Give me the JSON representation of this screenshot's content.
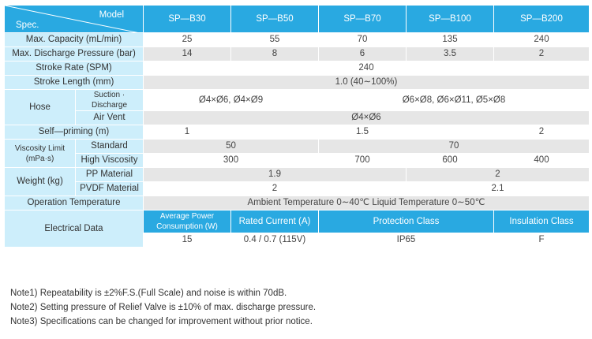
{
  "header": {
    "model_label": "Model",
    "spec_label": "Spec.",
    "models": [
      "SP—B30",
      "SP—B50",
      "SP—B70",
      "SP—B100",
      "SP—B200"
    ]
  },
  "rows": {
    "capacity": {
      "label": "Max. Capacity (mL/min)",
      "values": [
        "25",
        "55",
        "70",
        "135",
        "240"
      ]
    },
    "pressure": {
      "label": "Max. Discharge Pressure (bar)",
      "values": [
        "14",
        "8",
        "6",
        "3.5",
        "2"
      ]
    },
    "stroke_rate": {
      "label": "Stroke Rate (SPM)",
      "value": "240"
    },
    "stroke_length": {
      "label": "Stroke Length (mm)",
      "value": "1.0 (40∼100%)"
    },
    "hose": {
      "label": "Hose",
      "suction_label": "Suction · Discharge",
      "suction_small": "Ø4×Ø6, Ø4×Ø9",
      "suction_large": "Ø6×Ø8, Ø6×Ø11, Ø5×Ø8",
      "vent_label": "Air Vent",
      "vent_value": "Ø4×Ø6"
    },
    "self_priming": {
      "label": "Self—priming (m)",
      "values": [
        "1",
        "1.5",
        "2"
      ]
    },
    "viscosity": {
      "label": "Viscosity Limit (mPa·s)",
      "standard_label": "Standard",
      "standard_values": [
        "50",
        "70"
      ],
      "high_label": "High Viscosity",
      "high_values": [
        "300",
        "700",
        "600",
        "400"
      ]
    },
    "weight": {
      "label": "Weight (kg)",
      "pp_label": "PP Material",
      "pp_values": [
        "1.9",
        "2"
      ],
      "pvdf_label": "PVDF Material",
      "pvdf_values": [
        "2",
        "2.1"
      ]
    },
    "operation_temp": {
      "label": "Operation Temperature",
      "value": "Ambient Temperature 0∼40℃   Liquid Temperature 0∼50℃"
    },
    "electrical": {
      "label": "Electrical Data",
      "headers": [
        "Average Power Consumption (W)",
        "Rated Current (A)",
        "Protection Class",
        "Insulation Class"
      ],
      "values": [
        "15",
        "0.4 / 0.7 (115V)",
        "IP65",
        "F"
      ]
    }
  },
  "notes": [
    "Note1)  Repeatability is ±2%F.S.(Full Scale) and noise is within 70dB.",
    "Note2)  Setting pressure of Relief Valve is ±10% of max. discharge pressure.",
    "Note3)  Specifications can be changed for improvement without prior notice."
  ],
  "colors": {
    "header_blue": "#29a9e1",
    "label_cyan": "#cdeefb",
    "row_gray": "#e6e6e6"
  }
}
